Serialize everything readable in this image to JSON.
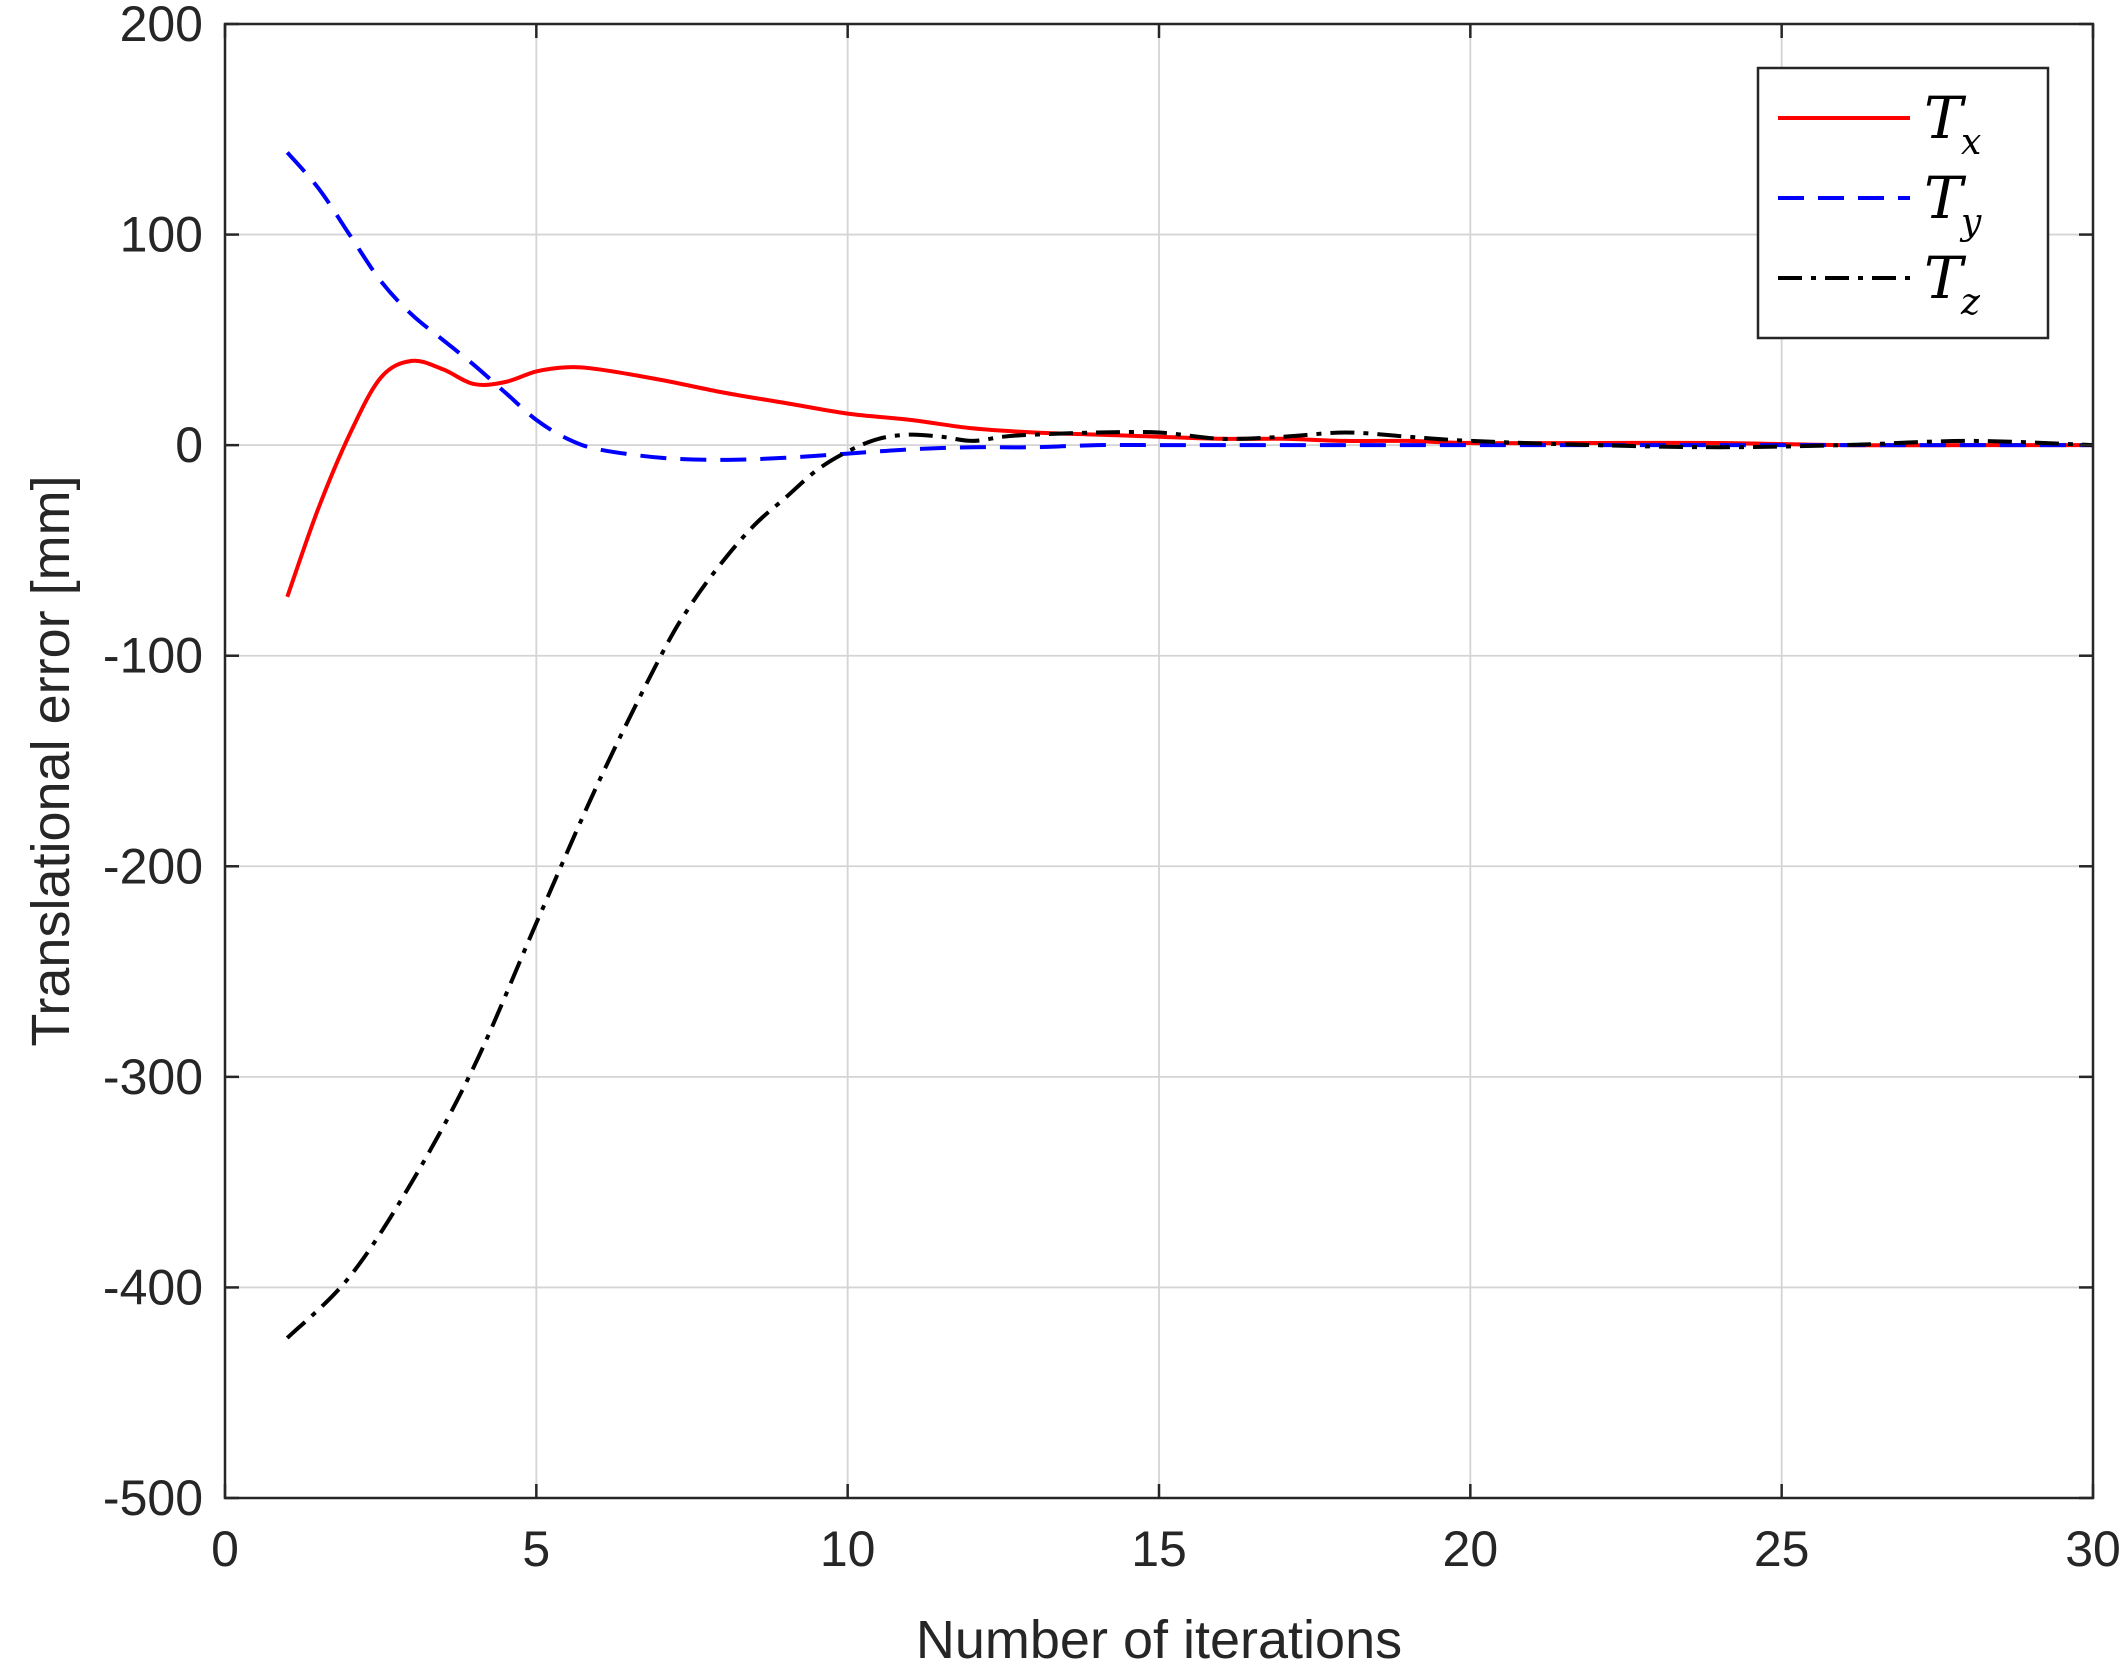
{
  "chart_data": {
    "type": "line",
    "title": "",
    "xlabel": "Number of iterations",
    "ylabel": "Translational error [mm]",
    "xlim": [
      0,
      30
    ],
    "ylim": [
      -500,
      200
    ],
    "xticks": [
      0,
      5,
      10,
      15,
      20,
      25,
      30
    ],
    "xtick_labels": [
      "0",
      "5",
      "10",
      "15",
      "20",
      "25",
      "30"
    ],
    "yticks": [
      200,
      100,
      0,
      -100,
      -200,
      -300,
      -400,
      -500
    ],
    "ytick_labels": [
      "200",
      "100",
      "0",
      "-100",
      "-200",
      "-300",
      "-400",
      "-500"
    ],
    "grid": true,
    "legend_position": "top-right",
    "series": [
      {
        "name": "T",
        "subscript": "x",
        "color": "#ff0000",
        "style": "solid",
        "x": [
          1,
          1.5,
          2,
          2.5,
          3,
          3.5,
          4,
          4.5,
          5,
          5.5,
          6,
          7,
          8,
          9,
          10,
          11,
          12,
          13,
          14,
          15,
          16,
          17,
          18,
          19,
          20,
          22,
          24,
          26,
          28,
          30
        ],
        "y": [
          -72,
          -30,
          5,
          32,
          40,
          36,
          29,
          30,
          35,
          37,
          36,
          31,
          25,
          20,
          15,
          12,
          8,
          6,
          5,
          4,
          3,
          3,
          2,
          2,
          1,
          1,
          1,
          0,
          0,
          0
        ]
      },
      {
        "name": "T",
        "subscript": "y",
        "color": "#0000ff",
        "style": "dashed",
        "x": [
          1,
          1.5,
          2,
          2.5,
          3,
          3.5,
          4,
          4.5,
          5,
          5.5,
          6,
          7,
          8,
          9,
          10,
          11,
          12,
          13,
          14,
          15,
          16,
          18,
          20,
          22,
          24,
          26,
          28,
          30
        ],
        "y": [
          139,
          122,
          100,
          78,
          62,
          50,
          38,
          25,
          12,
          3,
          -2,
          -6,
          -7,
          -6,
          -4,
          -2,
          -1,
          -1,
          0,
          0,
          0,
          0,
          0,
          0,
          0,
          0,
          0,
          0
        ]
      },
      {
        "name": "T",
        "subscript": "z",
        "color": "#000000",
        "style": "dashdot",
        "x": [
          1,
          2,
          3,
          4,
          5,
          6,
          7,
          7.5,
          8,
          8.5,
          9,
          9.5,
          10,
          10.5,
          11,
          11.5,
          12,
          12.5,
          13,
          14,
          15,
          16,
          17,
          18,
          19,
          20,
          22,
          24,
          26,
          28,
          30
        ],
        "y": [
          -424,
          -395,
          -350,
          -295,
          -227,
          -160,
          -100,
          -75,
          -55,
          -38,
          -25,
          -12,
          -3,
          3,
          5,
          4,
          2,
          4,
          5,
          6,
          6,
          3,
          4,
          6,
          4,
          2,
          0,
          -1,
          0,
          2,
          0
        ]
      }
    ]
  }
}
